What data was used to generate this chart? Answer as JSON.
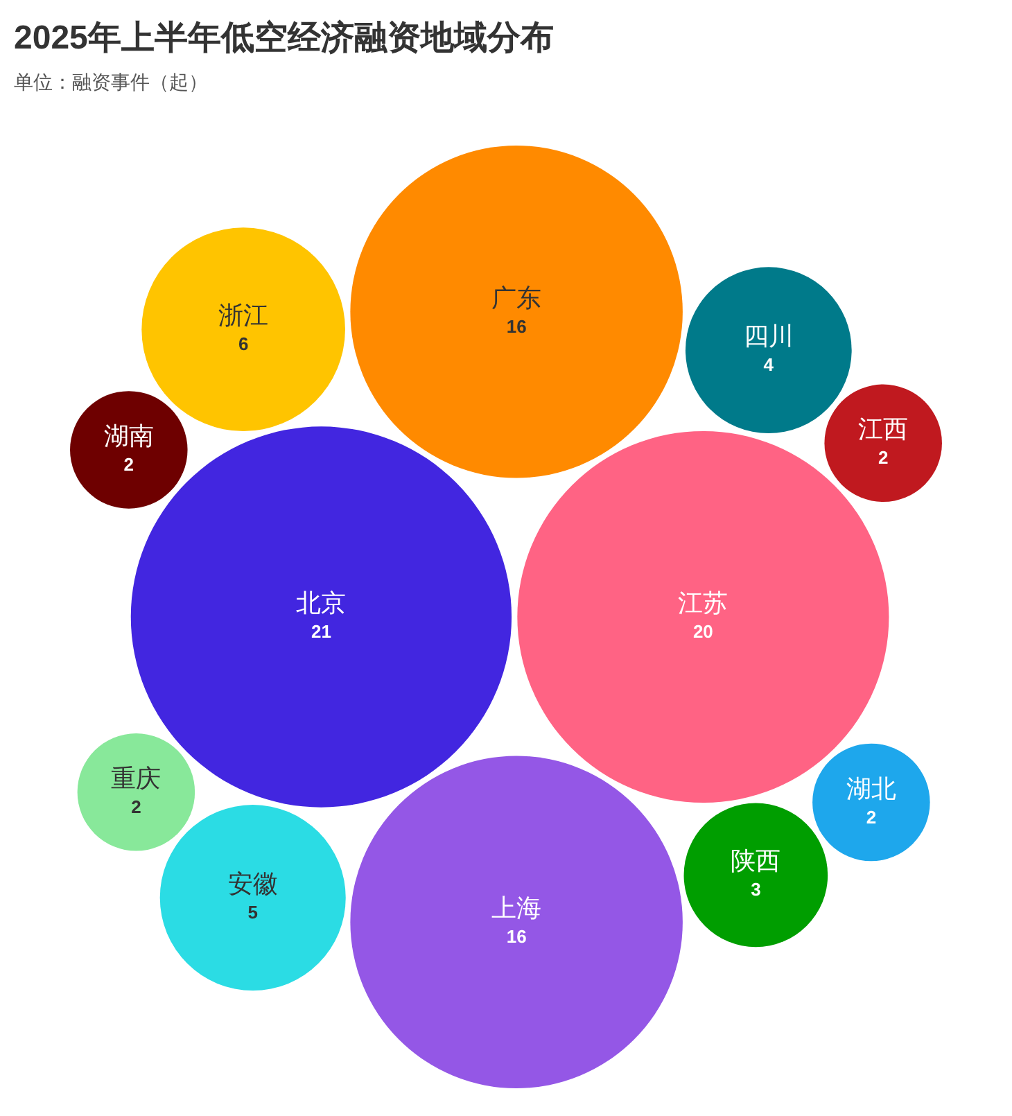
{
  "chart_data": {
    "type": "other",
    "title": "2025年上半年低空经济融资地域分布",
    "subtitle": "单位：融资事件（起）",
    "categories": [
      "北京",
      "江苏",
      "广东",
      "上海",
      "浙江",
      "安徽",
      "四川",
      "陕西",
      "湖北",
      "重庆",
      "江西",
      "湖南"
    ],
    "values": [
      21,
      20,
      16,
      16,
      6,
      5,
      4,
      3,
      2,
      2,
      2,
      2
    ],
    "colors": [
      "#4226e0",
      "#ff6384",
      "#ff8a00",
      "#9457e6",
      "#ffc400",
      "#2bdce4",
      "#007a8a",
      "#009e00",
      "#1ea7ec",
      "#88e89a",
      "#c0191f",
      "#6e0000"
    ],
    "data_labels": true
  }
}
